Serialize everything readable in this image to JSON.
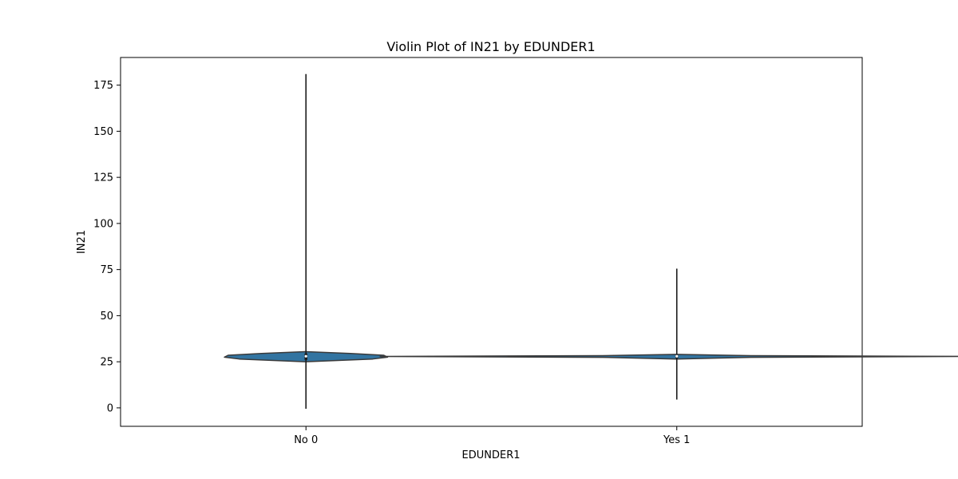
{
  "chart_data": {
    "type": "violin",
    "title": "Violin Plot of IN21 by EDUNDER1",
    "xlabel": "EDUNDER1",
    "ylabel": "IN21",
    "categories": [
      "No 0",
      "Yes 1"
    ],
    "ylim": [
      -10,
      190
    ],
    "yticks": [
      0,
      25,
      50,
      75,
      100,
      125,
      150,
      175
    ],
    "grid": false,
    "colors": {
      "fill": "#3274a1",
      "edge": "#3a3a3a",
      "whisker": "#1a1a1a"
    },
    "violins": [
      {
        "category": "No 0",
        "min": -0.5,
        "max": 181,
        "q1": 26,
        "median": 28,
        "q3": 29.5,
        "density": [
          {
            "y": 25.0,
            "w": 0.0
          },
          {
            "y": 26.5,
            "w": 0.18
          },
          {
            "y": 27.5,
            "w": 0.22
          },
          {
            "y": 28.5,
            "w": 0.21
          },
          {
            "y": 29.5,
            "w": 0.12
          },
          {
            "y": 30.5,
            "w": 0.0
          }
        ]
      },
      {
        "category": "Yes 1",
        "min": 4.5,
        "max": 75.5,
        "q1": 27,
        "median": 28,
        "q3": 28.5,
        "density": [
          {
            "y": 26.5,
            "w": 0.0
          },
          {
            "y": 27.4,
            "w": 0.2
          },
          {
            "y": 27.9,
            "w": 0.8
          },
          {
            "y": 28.3,
            "w": 0.2
          },
          {
            "y": 29.0,
            "w": 0.0
          }
        ]
      }
    ]
  }
}
